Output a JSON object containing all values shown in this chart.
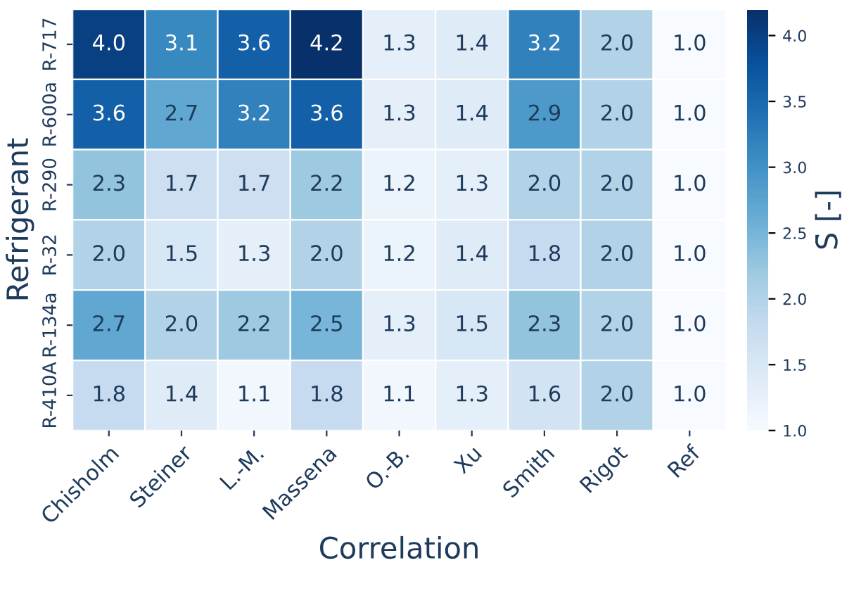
{
  "chart_data": {
    "type": "heatmap",
    "xlabel": "Correlation",
    "ylabel": "Refrigerant",
    "clabel": "S̄ [-]",
    "categories": [
      "Chisholm",
      "Steiner",
      "L.-M.",
      "Massena",
      "O.-B.",
      "Xu",
      "Smith",
      "Rigot",
      "Ref"
    ],
    "y_categories": [
      "R-717",
      "R-600a",
      "R-290",
      "R-32",
      "R-134a",
      "R-410A"
    ],
    "cells": [
      [
        4.0,
        3.1,
        3.6,
        4.2,
        1.3,
        1.4,
        3.2,
        2.0,
        1.0
      ],
      [
        3.6,
        2.7,
        3.2,
        3.6,
        1.3,
        1.4,
        2.9,
        2.0,
        1.0
      ],
      [
        2.3,
        1.7,
        1.7,
        2.2,
        1.2,
        1.3,
        2.0,
        2.0,
        1.0
      ],
      [
        2.0,
        1.5,
        1.3,
        2.0,
        1.2,
        1.4,
        1.8,
        2.0,
        1.0
      ],
      [
        2.7,
        2.0,
        2.2,
        2.5,
        1.3,
        1.5,
        2.3,
        2.0,
        1.0
      ],
      [
        1.8,
        1.4,
        1.1,
        1.8,
        1.1,
        1.3,
        1.6,
        2.0,
        1.0
      ]
    ],
    "cell_labels": [
      [
        "4.0",
        "3.1",
        "3.6",
        "4.2",
        "1.3",
        "1.4",
        "3.2",
        "2.0",
        "1.0"
      ],
      [
        "3.6",
        "2.7",
        "3.2",
        "3.6",
        "1.3",
        "1.4",
        "2.9",
        "2.0",
        "1.0"
      ],
      [
        "2.3",
        "1.7",
        "1.7",
        "2.2",
        "1.2",
        "1.3",
        "2.0",
        "2.0",
        "1.0"
      ],
      [
        "2.0",
        "1.5",
        "1.3",
        "2.0",
        "1.2",
        "1.4",
        "1.8",
        "2.0",
        "1.0"
      ],
      [
        "2.7",
        "2.0",
        "2.2",
        "2.5",
        "1.3",
        "1.5",
        "2.3",
        "2.0",
        "1.0"
      ],
      [
        "1.8",
        "1.4",
        "1.1",
        "1.8",
        "1.1",
        "1.3",
        "1.6",
        "2.0",
        "1.0"
      ]
    ],
    "clim": [
      1.0,
      4.2
    ],
    "cticks": [
      {
        "value": 1.0,
        "label": "1.0"
      },
      1.5,
      {
        "value": 2.0,
        "label": "2.0"
      },
      2.5,
      {
        "value": 3.0,
        "label": "3.0"
      },
      3.5,
      {
        "value": 4.0,
        "label": "4.0"
      }
    ]
  }
}
